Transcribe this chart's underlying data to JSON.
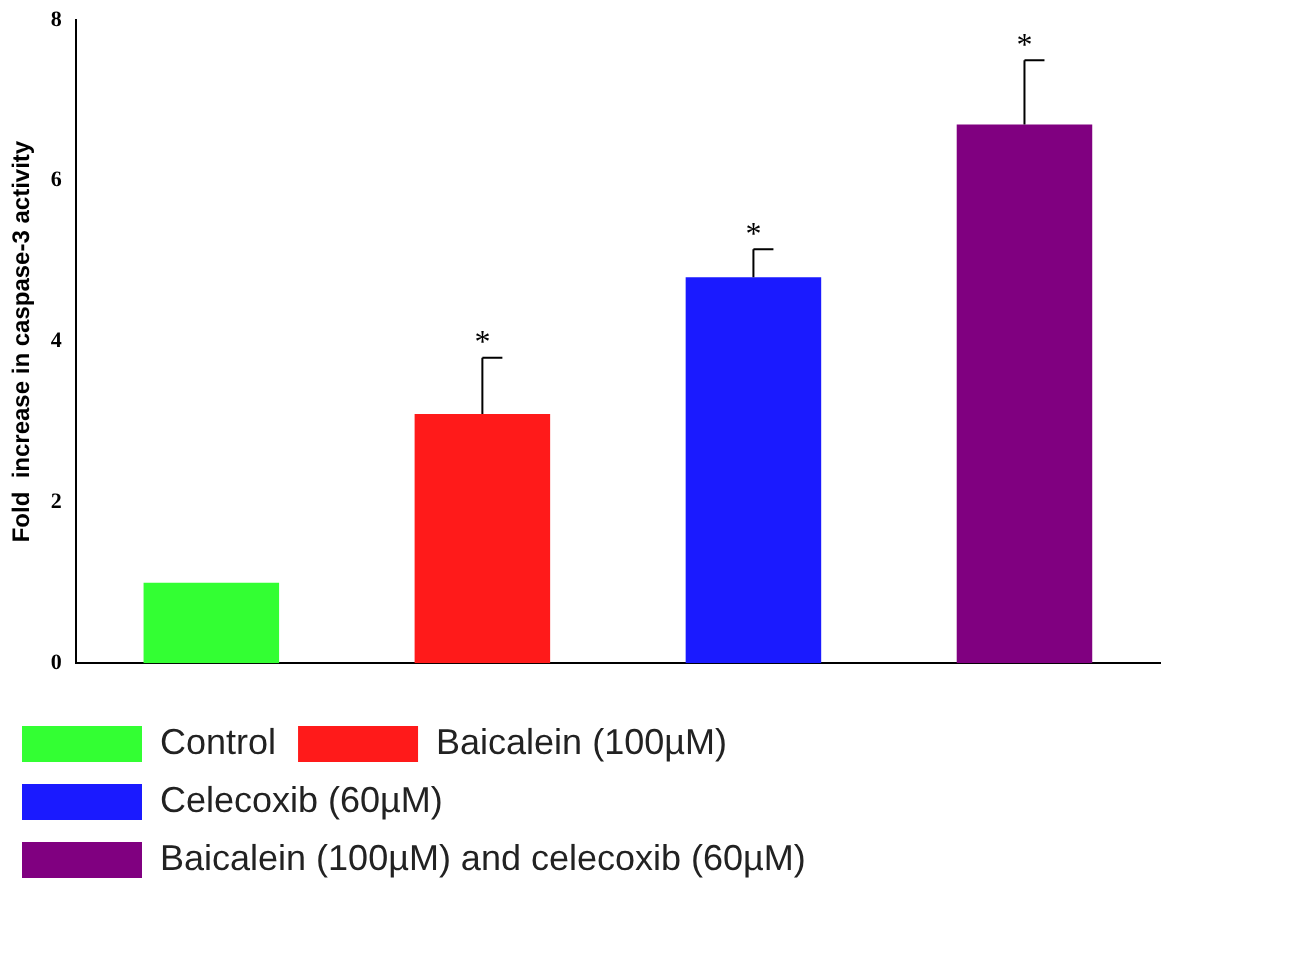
{
  "chart_data": {
    "type": "bar",
    "ylabel": "Fold  increase in caspase-3 activity",
    "categories": [
      null,
      null,
      null,
      null
    ],
    "series": [
      {
        "name": "Control",
        "color": "#33ff33",
        "values": [
          1.0,
          null,
          null,
          null
        ]
      },
      {
        "name": "Baicalein (100µM)",
        "color": "#ff1a1a",
        "values": [
          null,
          3.1,
          null,
          null
        ],
        "errors": [
          null,
          [
            3.1,
            3.8
          ],
          null,
          null
        ],
        "value_labels": [
          null,
          "*",
          null,
          null
        ]
      },
      {
        "name": "Celecoxib (60µM)",
        "color": "#1a1aff",
        "values": [
          null,
          null,
          4.8,
          null
        ],
        "errors": [
          null,
          null,
          [
            4.8,
            5.15
          ],
          null
        ],
        "value_labels": [
          null,
          null,
          "*",
          null
        ]
      },
      {
        "name": "Baicalein (100µM) and celecoxib (60µM)",
        "color": "#800080",
        "values": [
          null,
          null,
          null,
          6.7
        ],
        "errors": [
          null,
          null,
          null,
          [
            6.7,
            7.5
          ]
        ],
        "value_labels": [
          null,
          null,
          null,
          "*"
        ]
      }
    ],
    "ylim": [
      0,
      8
    ],
    "yticks": [
      0,
      2,
      4,
      6,
      8
    ],
    "grid": false,
    "legend": "bottom"
  }
}
